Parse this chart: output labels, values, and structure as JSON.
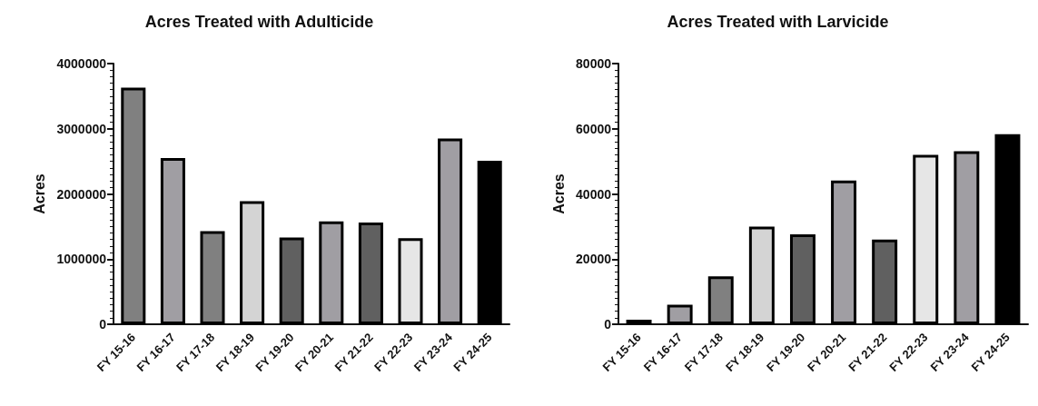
{
  "chart_data": [
    {
      "type": "bar",
      "title": "Acres Treated with Adulticide",
      "ylabel": "Acres",
      "categories": [
        "FY 15-16",
        "FY 16-17",
        "FY 17-18",
        "FY 18-19",
        "FY 19-20",
        "FY 20-21",
        "FY 21-22",
        "FY 22-23",
        "FY 23-24",
        "FY 24-25"
      ],
      "values": [
        3630000,
        2550000,
        1430000,
        1890000,
        1330000,
        1580000,
        1560000,
        1320000,
        2850000,
        2510000
      ],
      "colors": [
        "#808080",
        "#a09ea3",
        "#808080",
        "#d4d4d4",
        "#606060",
        "#a09ea3",
        "#606060",
        "#e6e6e6",
        "#a09ea3",
        "#000000"
      ],
      "ylim": [
        0,
        4000000
      ],
      "yticks": [
        0,
        1000000,
        2000000,
        3000000,
        4000000
      ],
      "grid": false
    },
    {
      "type": "bar",
      "title": "Acres Treated with Larvicide",
      "ylabel": "Acres",
      "categories": [
        "FY 15-16",
        "FY 16-17",
        "FY 17-18",
        "FY 18-19",
        "FY 19-20",
        "FY 20-21",
        "FY 21-22",
        "FY 22-23",
        "FY 23-24",
        "FY 24-25"
      ],
      "values": [
        1400,
        6000,
        14700,
        30000,
        27600,
        44100,
        26000,
        52000,
        53100,
        58300
      ],
      "colors": [
        "#808080",
        "#a09ea3",
        "#808080",
        "#d4d4d4",
        "#606060",
        "#a09ea3",
        "#606060",
        "#e6e6e6",
        "#a09ea3",
        "#000000"
      ],
      "ylim": [
        0,
        80000
      ],
      "yticks": [
        0,
        20000,
        40000,
        60000,
        80000
      ],
      "grid": false
    }
  ]
}
